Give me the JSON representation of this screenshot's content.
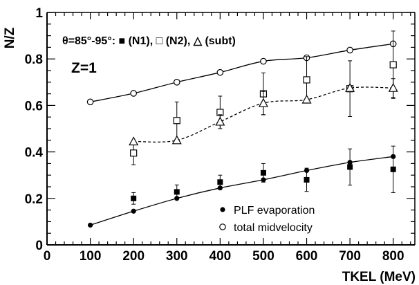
{
  "chart_data": {
    "type": "scatter",
    "xlabel": "TKEL (MeV)",
    "ylabel": "N/Z",
    "xlim": [
      0,
      850
    ],
    "ylim": [
      0,
      1
    ],
    "xticks": [
      0,
      100,
      200,
      300,
      400,
      500,
      600,
      700,
      800
    ],
    "yticks": [
      0,
      0.2,
      0.4,
      0.6,
      0.8,
      1
    ],
    "ytick_labels": [
      "0",
      "0.2",
      "0.4",
      "0.6",
      "0.8",
      "1"
    ],
    "annotation_angle": "θ=85°-95°: ■ (N1), □ (N2), △ (subt)",
    "annotation_z": "Z=1",
    "legend": [
      "PLF evaporation",
      "total midvelocity"
    ],
    "legend_position": "bottom-right",
    "series": [
      {
        "name": "PLF evaporation",
        "marker": "filled-circle",
        "x": [
          100,
          200,
          300,
          400,
          500,
          600,
          700,
          800
        ],
        "y": [
          0.085,
          0.145,
          0.2,
          0.245,
          0.28,
          0.32,
          0.355,
          0.38
        ],
        "fit": "solid"
      },
      {
        "name": "total midvelocity",
        "marker": "open-circle",
        "x": [
          100,
          200,
          300,
          400,
          500,
          600,
          700,
          800
        ],
        "y": [
          0.615,
          0.652,
          0.7,
          0.742,
          0.79,
          0.805,
          0.838,
          0.865
        ],
        "fit": "solid"
      },
      {
        "name": "N1",
        "marker": "filled-square",
        "x": [
          200,
          300,
          400,
          500,
          600,
          700,
          800
        ],
        "y": [
          0.2,
          0.228,
          0.27,
          0.31,
          0.28,
          0.335,
          0.325
        ],
        "err": [
          0.025,
          0.03,
          0.03,
          0.04,
          0.05,
          0.078,
          0.1
        ]
      },
      {
        "name": "N2",
        "marker": "open-square",
        "x": [
          200,
          300,
          400,
          500,
          600,
          700,
          800
        ],
        "y": [
          0.395,
          0.535,
          0.57,
          0.65,
          0.71,
          0.672,
          0.775
        ],
        "err": [
          0.05,
          0.08,
          0.07,
          0.09,
          0.1,
          0.12,
          0.145
        ]
      },
      {
        "name": "subt",
        "marker": "open-triangle",
        "x": [
          200,
          300,
          400,
          500,
          600,
          700,
          800
        ],
        "y": [
          0.445,
          0.45,
          0.53,
          0.61,
          0.625,
          0.675,
          0.675
        ],
        "err": [
          0,
          0,
          0.03,
          0.05,
          0,
          0,
          0.04
        ],
        "fit": "dashed"
      }
    ]
  }
}
